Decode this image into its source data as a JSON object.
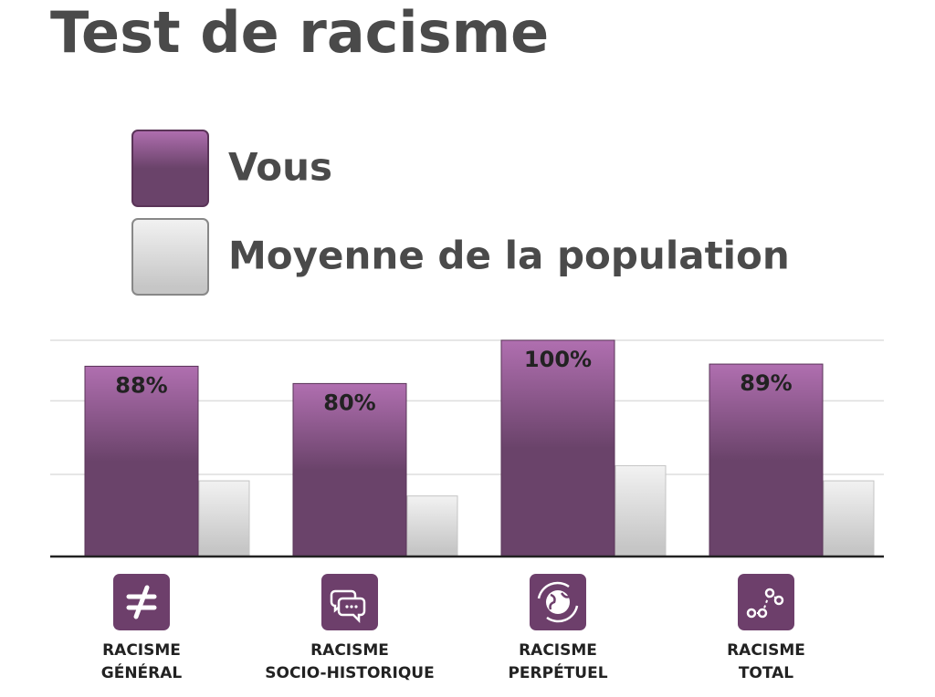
{
  "chart_data": {
    "type": "bar",
    "title": "Test de racisme",
    "categories": [
      [
        "RACISME",
        "GÉNÉRAL"
      ],
      [
        "RACISME",
        "SOCIO-HISTORIQUE"
      ],
      [
        "RACISME",
        "PERPÉTUEL"
      ],
      [
        "RACISME",
        "TOTAL"
      ]
    ],
    "series": [
      {
        "name": "Vous",
        "color": "#b06fb0",
        "values": [
          88,
          80,
          100,
          89
        ],
        "value_labels": [
          "88%",
          "80%",
          "100%",
          "89%"
        ]
      },
      {
        "name": "Moyenne de la population",
        "color": "#f2f2f2",
        "values": [
          35,
          28,
          42,
          35
        ]
      }
    ],
    "ylim": [
      0,
      100
    ],
    "gridlines": [
      38,
      72,
      100
    ]
  }
}
